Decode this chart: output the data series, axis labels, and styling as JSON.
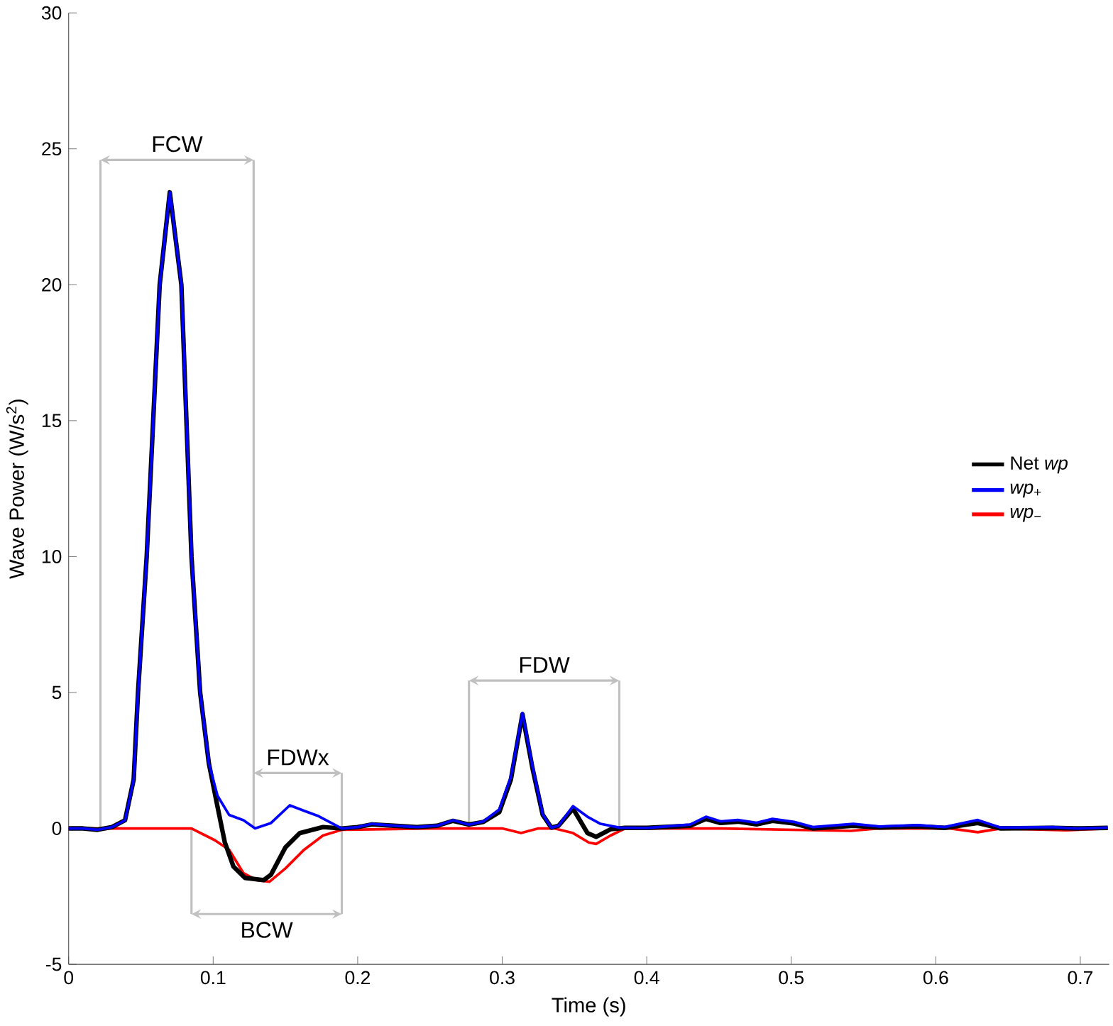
{
  "chart_data": {
    "type": "line",
    "xlabel": "Time (s)",
    "ylabel": "Wave Power (W/s$^{2}$)",
    "xlim": [
      0,
      0.72
    ],
    "ylim": [
      -5,
      30
    ],
    "xticks": [
      0,
      0.1,
      0.2,
      0.3,
      0.4,
      0.5,
      0.6,
      0.7
    ],
    "yticks": [
      -5,
      0,
      5,
      10,
      15,
      20,
      25,
      30
    ],
    "legend": "right",
    "series": [
      {
        "name": "Net *wp*",
        "color": "#000000",
        "x": [
          0,
          0.01,
          0.02,
          0.03,
          0.039,
          0.045,
          0.048,
          0.054,
          0.063,
          0.07,
          0.078,
          0.085,
          0.091,
          0.097,
          0.103,
          0.108,
          0.114,
          0.122,
          0.135,
          0.14,
          0.15,
          0.16,
          0.176,
          0.189,
          0.2,
          0.21,
          0.225,
          0.241,
          0.255,
          0.266,
          0.277,
          0.287,
          0.298,
          0.306,
          0.314,
          0.321,
          0.328,
          0.334,
          0.339,
          0.349,
          0.359,
          0.365,
          0.375,
          0.385,
          0.4,
          0.43,
          0.441,
          0.451,
          0.463,
          0.476,
          0.487,
          0.502,
          0.515,
          0.543,
          0.561,
          0.587,
          0.606,
          0.629,
          0.645,
          0.681,
          0.697,
          0.719
        ],
        "values": [
          0,
          0,
          -0.05,
          0.05,
          0.3,
          1.8,
          5,
          10,
          20,
          23.4,
          20,
          10,
          5,
          2.4,
          0.8,
          -0.5,
          -1.4,
          -1.82,
          -1.9,
          -1.7,
          -0.7,
          -0.17,
          0.05,
          0,
          0.05,
          0.15,
          0.1,
          0.05,
          0.1,
          0.28,
          0.14,
          0.24,
          0.6,
          1.8,
          4.2,
          2.2,
          0.5,
          0.03,
          0.1,
          0.73,
          -0.17,
          -0.31,
          -0.03,
          0.02,
          0.02,
          0.1,
          0.35,
          0.2,
          0.25,
          0.15,
          0.28,
          0.18,
          0,
          0.1,
          0.03,
          0.08,
          0.02,
          0.2,
          0,
          0.02,
          0,
          0.02
        ]
      },
      {
        "name": "*wp*$_{+}$",
        "color": "#0000ff",
        "x": [
          0,
          0.01,
          0.02,
          0.03,
          0.039,
          0.045,
          0.048,
          0.054,
          0.063,
          0.07,
          0.078,
          0.085,
          0.091,
          0.097,
          0.103,
          0.111,
          0.121,
          0.129,
          0.14,
          0.153,
          0.163,
          0.173,
          0.189,
          0.2,
          0.21,
          0.225,
          0.241,
          0.255,
          0.266,
          0.277,
          0.287,
          0.298,
          0.306,
          0.314,
          0.321,
          0.328,
          0.334,
          0.339,
          0.349,
          0.359,
          0.368,
          0.381,
          0.4,
          0.43,
          0.441,
          0.451,
          0.463,
          0.476,
          0.487,
          0.502,
          0.515,
          0.543,
          0.561,
          0.587,
          0.606,
          0.629,
          0.645,
          0.681,
          0.697,
          0.719
        ],
        "values": [
          0,
          0,
          -0.05,
          0.05,
          0.3,
          1.8,
          5,
          10,
          20,
          23.4,
          20,
          10,
          5,
          2.4,
          1.2,
          0.5,
          0.3,
          0,
          0.2,
          0.85,
          0.65,
          0.45,
          0,
          0.05,
          0.17,
          0.1,
          0.05,
          0.1,
          0.3,
          0.14,
          0.26,
          0.7,
          1.9,
          4.25,
          2.26,
          0.52,
          0.03,
          0.1,
          0.82,
          0.43,
          0.17,
          0.03,
          0.02,
          0.14,
          0.43,
          0.26,
          0.31,
          0.21,
          0.35,
          0.24,
          0.05,
          0.17,
          0.07,
          0.12,
          0.05,
          0.31,
          0.03,
          0.05,
          0,
          0.03
        ]
      },
      {
        "name": "*wp*$_{−}$",
        "color": "#ff0000",
        "x": [
          0,
          0.04,
          0.085,
          0.101,
          0.111,
          0.121,
          0.13,
          0.139,
          0.15,
          0.163,
          0.176,
          0.189,
          0.25,
          0.3,
          0.313,
          0.325,
          0.336,
          0.349,
          0.36,
          0.365,
          0.375,
          0.385,
          0.45,
          0.541,
          0.56,
          0.61,
          0.629,
          0.645,
          0.69,
          0.719
        ],
        "values": [
          0,
          0,
          0,
          -0.43,
          -0.78,
          -1.65,
          -1.9,
          -1.96,
          -1.47,
          -0.78,
          -0.26,
          -0.05,
          0,
          0,
          -0.17,
          0,
          0,
          -0.17,
          -0.52,
          -0.57,
          -0.26,
          0,
          0,
          -0.09,
          0,
          0,
          -0.14,
          0,
          -0.07,
          0
        ]
      }
    ],
    "ref_lines": [
      {
        "axis": "x",
        "value": 0.022,
        "color": "#c0c0c0"
      },
      {
        "axis": "x",
        "value": 0.128,
        "color": "#c0c0c0"
      },
      {
        "axis": "x",
        "value": 0.085,
        "color": "#c0c0c0"
      },
      {
        "axis": "x",
        "value": 0.189,
        "color": "#c0c0c0"
      },
      {
        "axis": "x",
        "value": 0.277,
        "color": "#c0c0c0"
      },
      {
        "axis": "x",
        "value": 0.381,
        "color": "#c0c0c0"
      }
    ],
    "annotations": [
      "FCW",
      "FDWx",
      "BCW",
      "FDW"
    ]
  }
}
